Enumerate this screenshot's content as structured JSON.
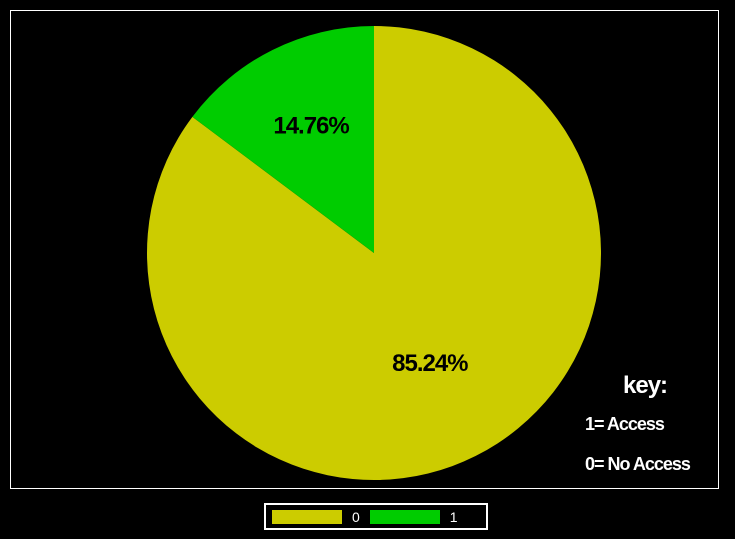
{
  "chart_data": {
    "type": "pie",
    "slices": [
      {
        "label": "0",
        "value": 85.24,
        "display": "85.24%",
        "color": "#cccc00"
      },
      {
        "label": "1",
        "value": 14.76,
        "display": "14.76%",
        "color": "#00cc00"
      }
    ],
    "legend": {
      "placement": "bottom-center",
      "entries": [
        "0",
        "1"
      ]
    },
    "key": {
      "title": "key:",
      "lines": [
        "1= Access",
        "0= No Access"
      ]
    }
  },
  "colors": {
    "background": "#000000",
    "border": "#ffffff",
    "slice_0": "#cccc00",
    "slice_1": "#00cc00"
  }
}
